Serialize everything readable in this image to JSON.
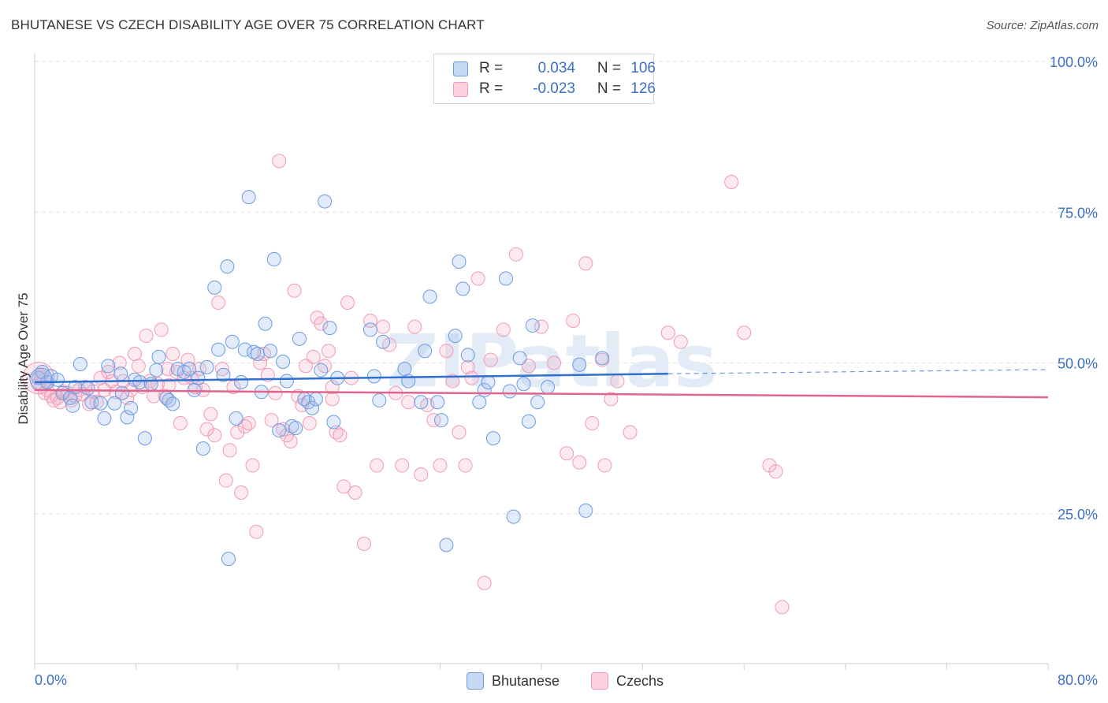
{
  "title": "BHUTANESE VS CZECH DISABILITY AGE OVER 75 CORRELATION CHART",
  "source": "Source: ZipAtlas.com",
  "watermark": "ZIPatlas",
  "legend": {
    "rows": [
      {
        "r_label": "R =",
        "r_value": "0.034",
        "n_label": "N =",
        "n_value": "106"
      },
      {
        "r_label": "R =",
        "r_value": "-0.023",
        "n_label": "N =",
        "n_value": "126"
      }
    ]
  },
  "chart_data": {
    "type": "scatter",
    "xlabel": "",
    "ylabel": "Disability Age Over 75",
    "xlim": [
      0,
      80
    ],
    "ylim": [
      0,
      105
    ],
    "x_tick_labels": [
      "0.0%",
      "80.0%"
    ],
    "y_ticks": [
      25,
      50,
      75,
      100
    ],
    "y_tick_labels": [
      "25.0%",
      "50.0%",
      "75.0%",
      "100.0%"
    ],
    "grid": true,
    "legend_position": "top-center",
    "colors": {
      "Bhutanese": "#6b9be0",
      "Czechs": "#f09bb5",
      "blue_line": "#2f6fd0",
      "pink_line": "#e0648e",
      "axis_text": "#3a6fc4"
    },
    "series": [
      {
        "name": "Bhutanese",
        "trend": {
          "x": [
            0,
            50
          ],
          "y": [
            46.8,
            48.2
          ],
          "dashed_to_x": 80,
          "dashed_to_y": 48.9
        },
        "points": [
          [
            0.3,
            47.5
          ],
          [
            0.6,
            48.5
          ],
          [
            1.0,
            46.8
          ],
          [
            1.3,
            47.8
          ],
          [
            1.8,
            47.2
          ],
          [
            2.2,
            45.0
          ],
          [
            2.8,
            44.2
          ],
          [
            3.0,
            42.9
          ],
          [
            3.2,
            46.0
          ],
          [
            3.6,
            49.8
          ],
          [
            4.2,
            45.8
          ],
          [
            4.5,
            43.5
          ],
          [
            5.2,
            43.3
          ],
          [
            5.5,
            40.8
          ],
          [
            5.8,
            49.5
          ],
          [
            6.3,
            43.3
          ],
          [
            6.8,
            48.2
          ],
          [
            6.9,
            45.0
          ],
          [
            7.3,
            41.0
          ],
          [
            7.6,
            42.5
          ],
          [
            7.9,
            47.2
          ],
          [
            8.3,
            46.8
          ],
          [
            8.7,
            37.5
          ],
          [
            9.2,
            46.5
          ],
          [
            9.6,
            48.8
          ],
          [
            9.8,
            51.0
          ],
          [
            10.4,
            44.2
          ],
          [
            10.6,
            43.8
          ],
          [
            10.9,
            43.2
          ],
          [
            11.3,
            49.0
          ],
          [
            11.8,
            48.5
          ],
          [
            12.2,
            49.0
          ],
          [
            12.6,
            45.5
          ],
          [
            12.9,
            47.5
          ],
          [
            13.3,
            35.8
          ],
          [
            13.6,
            49.3
          ],
          [
            14.2,
            62.5
          ],
          [
            14.5,
            52.2
          ],
          [
            14.9,
            48.0
          ],
          [
            15.2,
            66.0
          ],
          [
            15.6,
            53.5
          ],
          [
            15.9,
            40.8
          ],
          [
            16.3,
            46.8
          ],
          [
            16.6,
            52.2
          ],
          [
            16.9,
            77.5
          ],
          [
            17.3,
            51.8
          ],
          [
            17.6,
            51.5
          ],
          [
            17.9,
            45.2
          ],
          [
            18.2,
            56.5
          ],
          [
            18.6,
            52.0
          ],
          [
            18.9,
            67.2
          ],
          [
            19.3,
            38.8
          ],
          [
            19.6,
            50.2
          ],
          [
            19.9,
            47.0
          ],
          [
            20.3,
            39.5
          ],
          [
            20.6,
            39.2
          ],
          [
            20.9,
            54.0
          ],
          [
            21.3,
            44.0
          ],
          [
            21.6,
            43.5
          ],
          [
            21.9,
            42.5
          ],
          [
            22.2,
            44.0
          ],
          [
            22.6,
            48.8
          ],
          [
            22.9,
            76.8
          ],
          [
            23.3,
            55.8
          ],
          [
            23.6,
            40.2
          ],
          [
            23.9,
            47.5
          ],
          [
            26.5,
            55.5
          ],
          [
            26.8,
            47.8
          ],
          [
            27.2,
            43.8
          ],
          [
            27.5,
            53.5
          ],
          [
            29.2,
            49.0
          ],
          [
            29.5,
            47.0
          ],
          [
            30.5,
            43.5
          ],
          [
            30.8,
            52.0
          ],
          [
            31.2,
            61.0
          ],
          [
            31.8,
            43.5
          ],
          [
            32.1,
            40.5
          ],
          [
            32.5,
            19.8
          ],
          [
            33.2,
            54.5
          ],
          [
            33.5,
            66.8
          ],
          [
            33.8,
            62.3
          ],
          [
            34.2,
            51.3
          ],
          [
            35.1,
            43.5
          ],
          [
            35.5,
            45.5
          ],
          [
            35.8,
            46.8
          ],
          [
            36.2,
            37.5
          ],
          [
            37.2,
            64.0
          ],
          [
            37.5,
            45.3
          ],
          [
            37.8,
            24.5
          ],
          [
            38.3,
            50.8
          ],
          [
            38.6,
            46.5
          ],
          [
            39.0,
            40.3
          ],
          [
            39.3,
            56.2
          ],
          [
            39.7,
            43.5
          ],
          [
            40.5,
            46.0
          ],
          [
            43.0,
            49.7
          ],
          [
            43.5,
            25.5
          ],
          [
            44.8,
            50.8
          ],
          [
            15.3,
            17.5
          ]
        ]
      },
      {
        "name": "Czechs",
        "trend": {
          "x": [
            0,
            80
          ],
          "y": [
            45.5,
            44.3
          ]
        },
        "points": [
          [
            0.3,
            46.5
          ],
          [
            0.5,
            47.5
          ],
          [
            0.8,
            45.0
          ],
          [
            1.0,
            45.5
          ],
          [
            1.3,
            44.5
          ],
          [
            1.5,
            43.8
          ],
          [
            1.8,
            44.2
          ],
          [
            2.0,
            43.5
          ],
          [
            2.3,
            45.2
          ],
          [
            2.6,
            45.0
          ],
          [
            2.9,
            43.8
          ],
          [
            3.2,
            44.5
          ],
          [
            3.5,
            45.5
          ],
          [
            3.8,
            44.8
          ],
          [
            4.0,
            46.0
          ],
          [
            4.3,
            43.2
          ],
          [
            4.6,
            45.3
          ],
          [
            4.9,
            43.5
          ],
          [
            5.2,
            47.5
          ],
          [
            5.5,
            45.5
          ],
          [
            5.8,
            48.5
          ],
          [
            6.1,
            47.0
          ],
          [
            6.4,
            45.2
          ],
          [
            6.7,
            50.0
          ],
          [
            7.0,
            47.0
          ],
          [
            7.3,
            44.2
          ],
          [
            7.6,
            45.5
          ],
          [
            7.9,
            51.5
          ],
          [
            8.2,
            49.5
          ],
          [
            8.5,
            46.0
          ],
          [
            8.8,
            54.5
          ],
          [
            9.1,
            47.0
          ],
          [
            9.4,
            44.5
          ],
          [
            9.7,
            46.5
          ],
          [
            10.0,
            55.5
          ],
          [
            10.3,
            44.5
          ],
          [
            10.6,
            46.3
          ],
          [
            10.9,
            51.5
          ],
          [
            11.2,
            48.5
          ],
          [
            11.5,
            40.0
          ],
          [
            11.8,
            47.5
          ],
          [
            12.1,
            50.5
          ],
          [
            12.4,
            47.5
          ],
          [
            12.7,
            46.0
          ],
          [
            13.0,
            49.0
          ],
          [
            13.3,
            45.5
          ],
          [
            13.6,
            39.0
          ],
          [
            13.9,
            41.5
          ],
          [
            14.2,
            38.0
          ],
          [
            14.5,
            60.0
          ],
          [
            14.8,
            49.0
          ],
          [
            15.1,
            30.5
          ],
          [
            15.4,
            35.5
          ],
          [
            15.7,
            46.0
          ],
          [
            16.0,
            38.5
          ],
          [
            16.3,
            28.5
          ],
          [
            16.6,
            39.5
          ],
          [
            16.9,
            40.0
          ],
          [
            17.2,
            33.0
          ],
          [
            17.5,
            22.0
          ],
          [
            17.8,
            50.0
          ],
          [
            18.1,
            51.5
          ],
          [
            18.4,
            48.0
          ],
          [
            18.7,
            40.5
          ],
          [
            19.0,
            45.0
          ],
          [
            19.3,
            83.5
          ],
          [
            19.6,
            39.0
          ],
          [
            19.9,
            38.0
          ],
          [
            20.2,
            37.0
          ],
          [
            20.5,
            62.0
          ],
          [
            20.8,
            44.5
          ],
          [
            21.1,
            43.0
          ],
          [
            21.4,
            49.5
          ],
          [
            21.7,
            40.0
          ],
          [
            22.0,
            51.0
          ],
          [
            22.3,
            57.5
          ],
          [
            22.6,
            56.5
          ],
          [
            22.9,
            49.5
          ],
          [
            23.2,
            52.0
          ],
          [
            23.5,
            44.0
          ],
          [
            23.8,
            38.5
          ],
          [
            24.1,
            38.0
          ],
          [
            24.4,
            29.5
          ],
          [
            24.7,
            60.0
          ],
          [
            25.0,
            47.5
          ],
          [
            25.3,
            28.5
          ],
          [
            26.0,
            20.0
          ],
          [
            26.5,
            57.0
          ],
          [
            27.0,
            33.0
          ],
          [
            27.5,
            56.0
          ],
          [
            28.0,
            53.0
          ],
          [
            28.5,
            45.0
          ],
          [
            29.0,
            33.0
          ],
          [
            29.5,
            43.5
          ],
          [
            30.0,
            56.0
          ],
          [
            30.5,
            31.5
          ],
          [
            31.0,
            43.0
          ],
          [
            31.5,
            40.5
          ],
          [
            32.0,
            33.0
          ],
          [
            32.5,
            52.0
          ],
          [
            33.0,
            47.0
          ],
          [
            33.5,
            38.5
          ],
          [
            34.0,
            33.0
          ],
          [
            34.5,
            47.5
          ],
          [
            35.0,
            64.0
          ],
          [
            35.5,
            13.5
          ],
          [
            36.0,
            50.5
          ],
          [
            37.0,
            55.5
          ],
          [
            38.0,
            68.0
          ],
          [
            39.0,
            49.5
          ],
          [
            40.0,
            56.0
          ],
          [
            41.0,
            50.0
          ],
          [
            42.0,
            35.0
          ],
          [
            42.5,
            57.0
          ],
          [
            43.0,
            33.5
          ],
          [
            44.0,
            40.0
          ],
          [
            45.0,
            33.0
          ],
          [
            46.0,
            47.0
          ],
          [
            47.0,
            38.5
          ],
          [
            50.0,
            55.0
          ],
          [
            51.0,
            53.5
          ],
          [
            55.0,
            80.0
          ],
          [
            56.0,
            55.0
          ],
          [
            58.0,
            33.0
          ],
          [
            58.5,
            32.0
          ],
          [
            59.0,
            9.5
          ],
          [
            43.5,
            66.5
          ],
          [
            45.5,
            44.0
          ],
          [
            44.8,
            50.5
          ],
          [
            0.5,
            47.8
          ],
          [
            10.5,
            49.0
          ],
          [
            23.5,
            46.0
          ],
          [
            34.2,
            49.3
          ]
        ]
      }
    ]
  },
  "bottom_legend": [
    {
      "label": "Bhutanese"
    },
    {
      "label": "Czechs"
    }
  ]
}
